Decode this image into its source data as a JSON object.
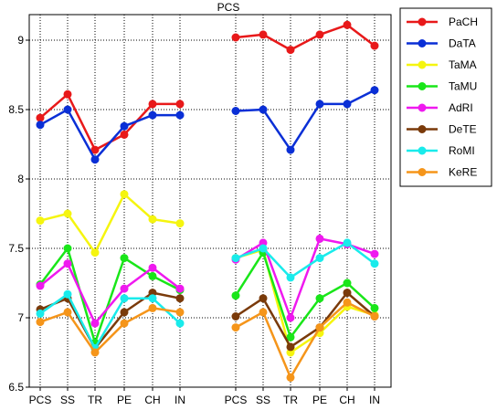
{
  "chart_data": {
    "type": "line",
    "title": "PCS",
    "xlabel": "",
    "ylabel": "",
    "ylim": [
      6.5,
      9.2
    ],
    "yticks": [
      6.5,
      7,
      7.5,
      8,
      8.5,
      9
    ],
    "ytick_labels": [
      "6.5",
      "7",
      "7.5",
      "8",
      "8.5",
      "9"
    ],
    "grid": "dotted",
    "legend_position": "right",
    "groups": [
      {
        "categories": [
          "PCS",
          "SS",
          "TR",
          "PE",
          "CH",
          "IN"
        ]
      },
      {
        "categories": [
          "PCS",
          "SS",
          "TR",
          "PE",
          "CH",
          "IN"
        ]
      }
    ],
    "series": [
      {
        "name": "PaCH",
        "color": "#e8191a",
        "groups": [
          [
            8.44,
            8.61,
            8.21,
            8.32,
            8.54,
            8.54
          ],
          [
            9.02,
            9.04,
            8.93,
            9.04,
            9.11,
            8.96
          ]
        ]
      },
      {
        "name": "DaTA",
        "color": "#0a2fd6",
        "groups": [
          [
            8.39,
            8.5,
            8.14,
            8.38,
            8.46,
            8.46
          ],
          [
            8.49,
            8.5,
            8.21,
            8.54,
            8.54,
            8.64
          ]
        ]
      },
      {
        "name": "TaMA",
        "color": "#f5f50f",
        "groups": [
          [
            7.7,
            7.75,
            7.47,
            7.89,
            7.71,
            7.68
          ],
          [
            7.43,
            7.49,
            6.75,
            6.89,
            7.08,
            7.02
          ]
        ]
      },
      {
        "name": "TaMU",
        "color": "#19e619",
        "groups": [
          [
            7.24,
            7.5,
            6.82,
            7.43,
            7.3,
            7.2
          ],
          [
            7.16,
            7.47,
            6.86,
            7.14,
            7.25,
            7.07
          ]
        ]
      },
      {
        "name": "AdRI",
        "color": "#ef19ef",
        "groups": [
          [
            7.23,
            7.39,
            6.96,
            7.21,
            7.36,
            7.21
          ],
          [
            7.42,
            7.54,
            7.0,
            7.57,
            7.53,
            7.46
          ]
        ]
      },
      {
        "name": "DeTE",
        "color": "#7a3a0a",
        "groups": [
          [
            7.06,
            7.14,
            6.78,
            7.04,
            7.18,
            7.14
          ],
          [
            7.01,
            7.14,
            6.79,
            6.93,
            7.18,
            7.01
          ]
        ]
      },
      {
        "name": "RoMI",
        "color": "#19ebeb",
        "groups": [
          [
            7.03,
            7.17,
            6.78,
            7.14,
            7.14,
            6.96
          ],
          [
            7.43,
            7.5,
            7.29,
            7.43,
            7.54,
            7.39
          ]
        ]
      },
      {
        "name": "KeRE",
        "color": "#f5951a",
        "groups": [
          [
            6.97,
            7.04,
            6.75,
            6.96,
            7.07,
            7.04
          ],
          [
            6.93,
            7.04,
            6.57,
            6.93,
            7.11,
            7.01
          ]
        ]
      }
    ]
  }
}
